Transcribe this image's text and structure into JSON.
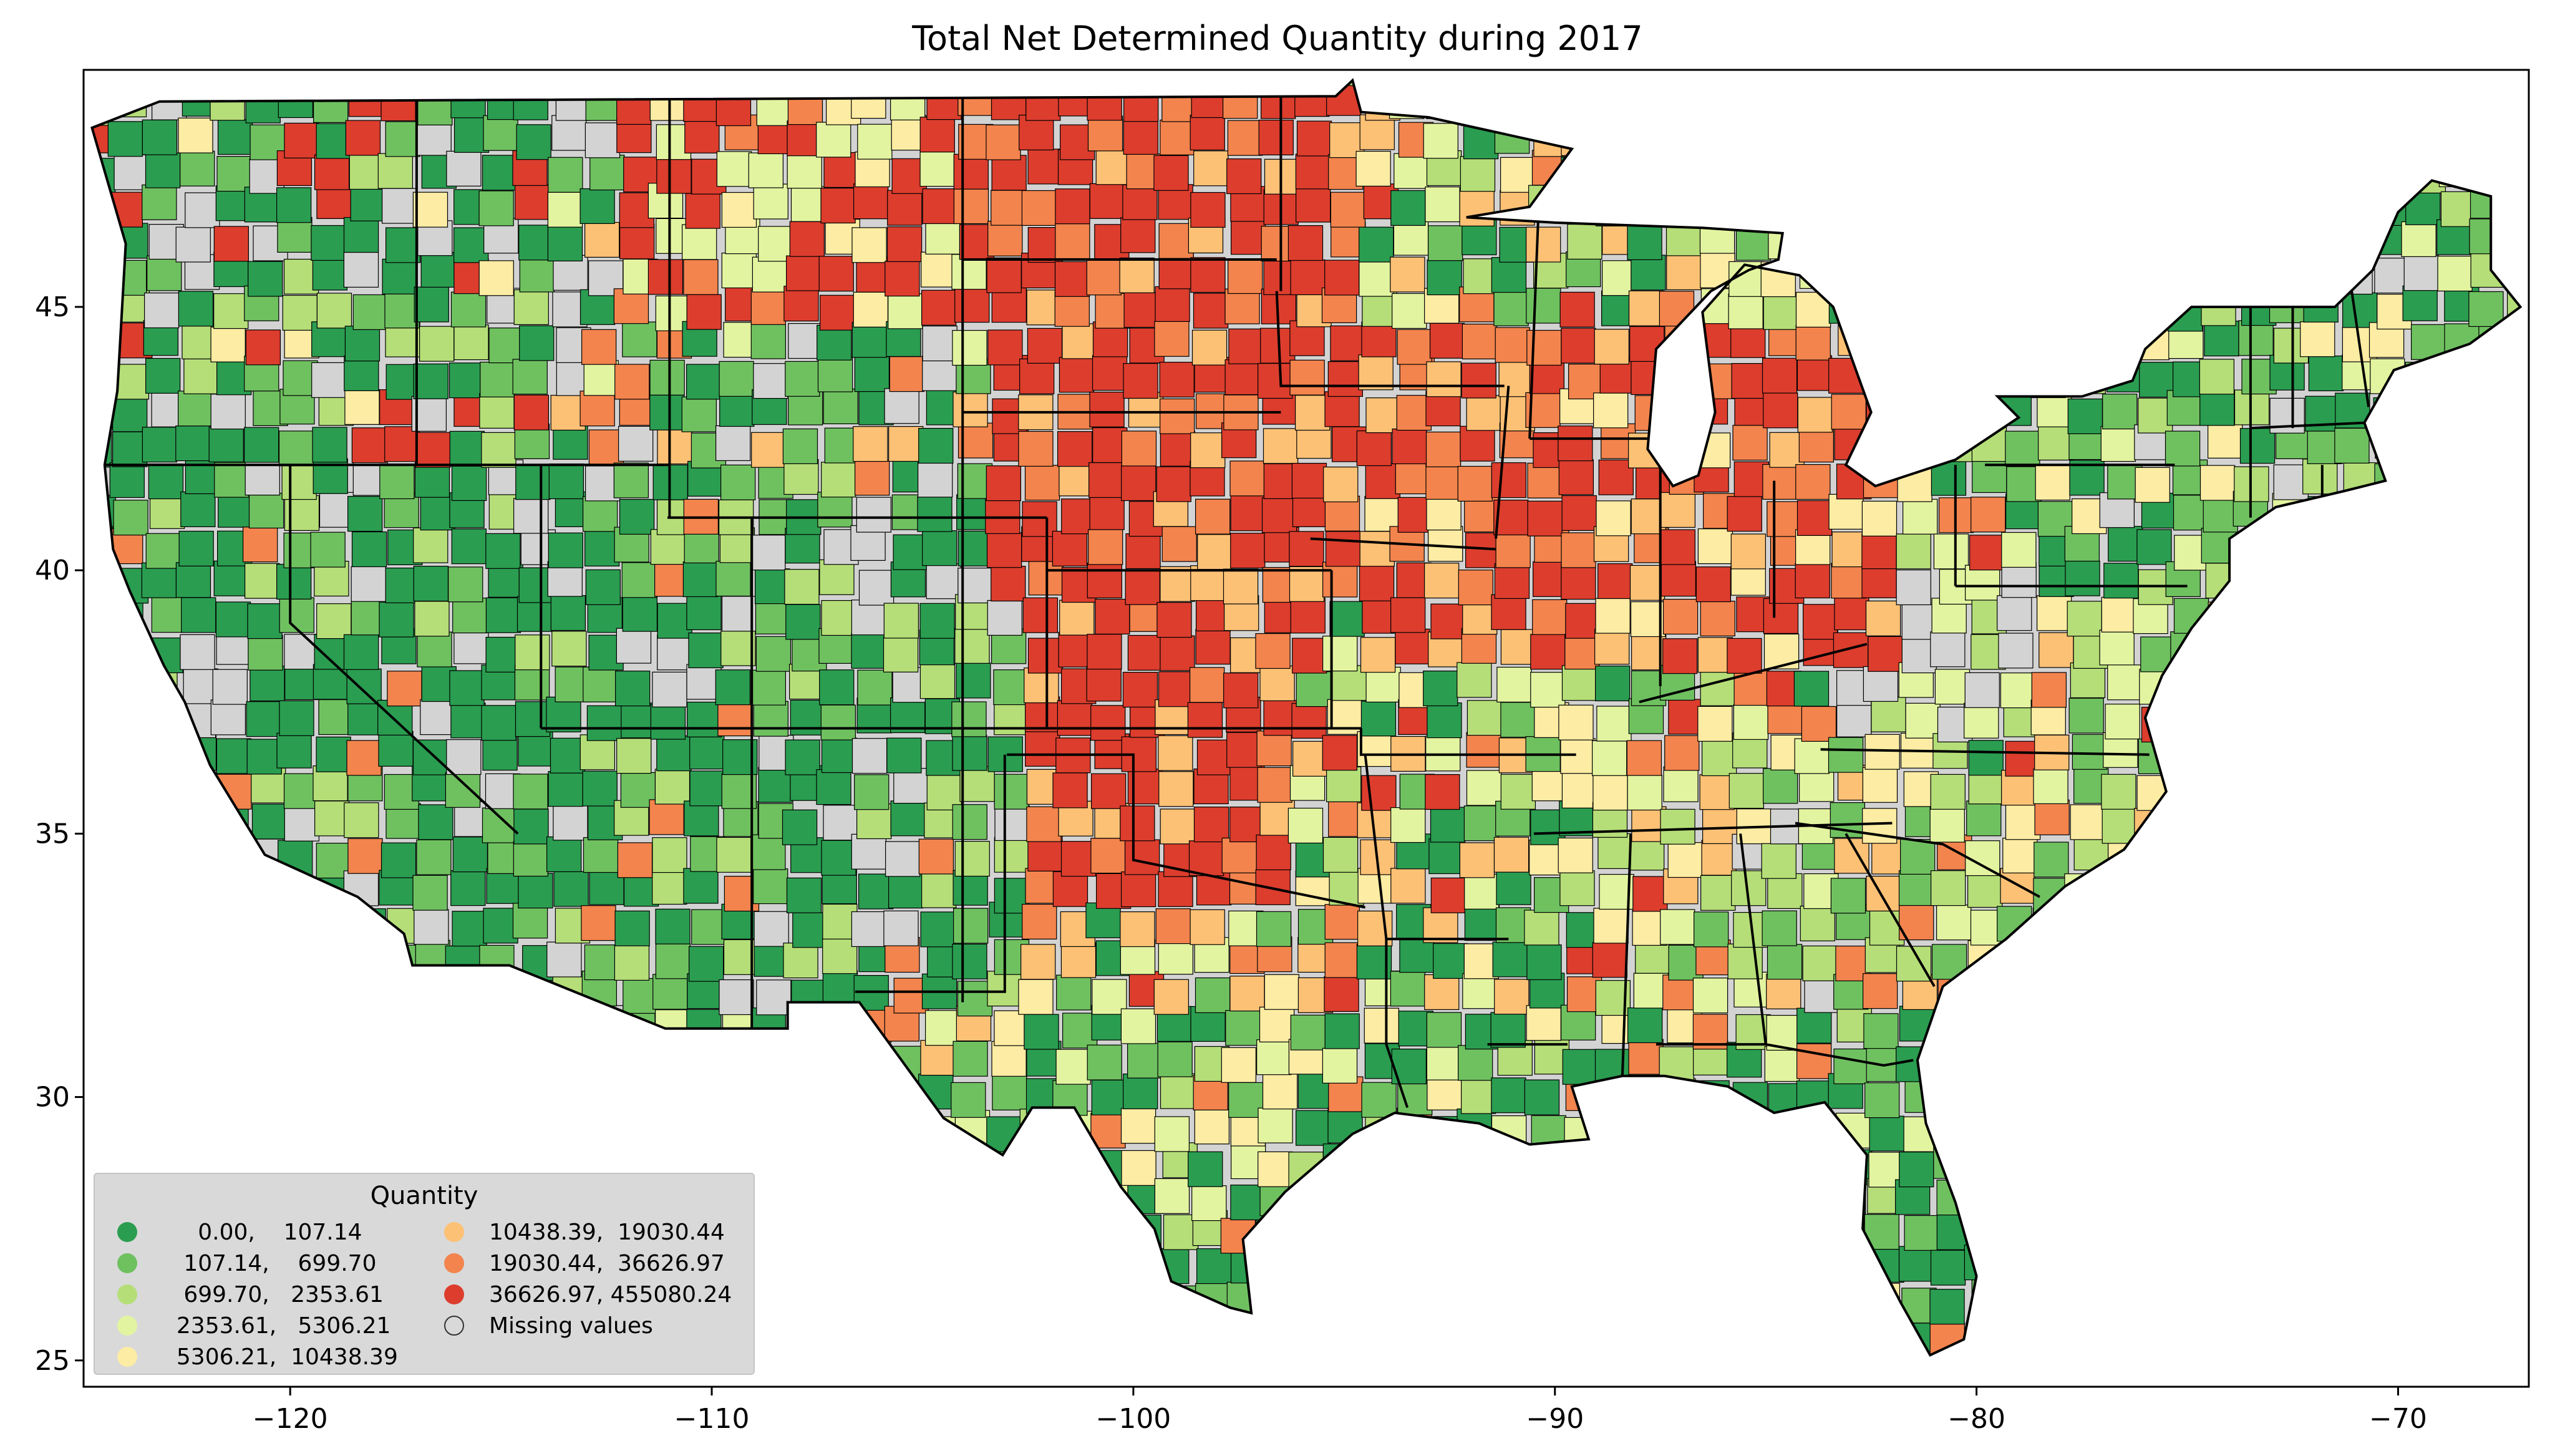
{
  "title": "Total Net Determined Quantity during 2017",
  "x_ticks": [
    "−120",
    "−110",
    "−100",
    "−90",
    "−80",
    "−70"
  ],
  "y_ticks": [
    "45",
    "40",
    "35",
    "30",
    "25"
  ],
  "legend": {
    "title": "Quantity",
    "items": [
      {
        "label": "     0.00,    107.14",
        "color": "#2a9d50"
      },
      {
        "label": "   107.14,    699.70",
        "color": "#6fc160"
      },
      {
        "label": "   699.70,   2353.61",
        "color": "#b5de78"
      },
      {
        "label": "  2353.61,   5306.21",
        "color": "#e3f4a0"
      },
      {
        "label": "  5306.21,  10438.39",
        "color": "#fdeca3"
      },
      {
        "label": "10438.39,  19030.44",
        "color": "#fcc175"
      },
      {
        "label": "19030.44,  36626.97",
        "color": "#f3844d"
      },
      {
        "label": "36626.97, 455080.24",
        "color": "#dc3d2d"
      },
      {
        "label": "Missing values",
        "color": "#d3d3d3"
      }
    ]
  },
  "chart_data": {
    "type": "choropleth",
    "x_axis": {
      "ticks": [
        -120,
        -110,
        -100,
        -90,
        -80,
        -70
      ],
      "range": [
        -124.9,
        -66.9
      ]
    },
    "y_axis": {
      "ticks": [
        45,
        40,
        35,
        30,
        25
      ],
      "range": [
        24.5,
        49.5
      ]
    },
    "grid": false,
    "legend_placement": "lower-left"
  }
}
